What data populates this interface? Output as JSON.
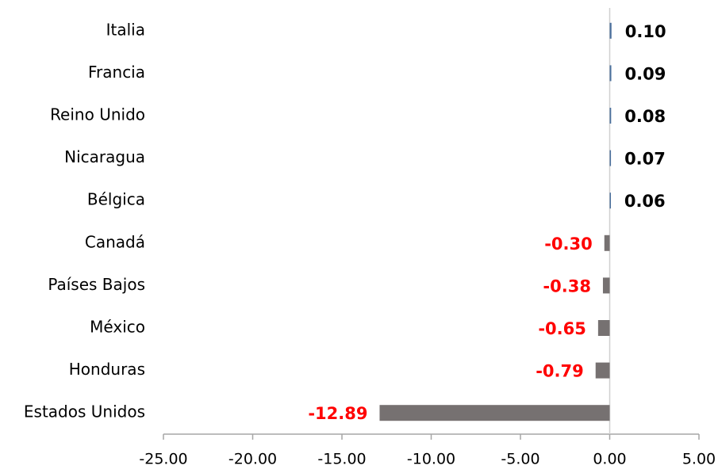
{
  "chart_data": {
    "type": "hbar",
    "categories": [
      "Italia",
      "Francia",
      "Reino Unido",
      "Nicaragua",
      "Bélgica",
      "Canadá",
      "Países Bajos",
      "México",
      "Honduras",
      "Estados Unidos"
    ],
    "values": [
      0.1,
      0.09,
      0.08,
      0.07,
      0.06,
      -0.3,
      -0.38,
      -0.65,
      -0.79,
      -12.89
    ],
    "value_labels": [
      "0.10",
      "0.09",
      "0.08",
      "0.07",
      "0.06",
      "-0.30",
      "-0.38",
      "-0.65",
      "-0.79",
      "-12.89"
    ],
    "bar_colors": {
      "positive": "#4a6f9c",
      "negative": "#767171"
    },
    "label_colors": {
      "positive": "#000000",
      "negative": "#ff0000"
    },
    "xlim": [
      -25,
      5
    ],
    "xticks": [
      {
        "value": -25,
        "label": "-25.00"
      },
      {
        "value": -20,
        "label": "-20.00"
      },
      {
        "value": -15,
        "label": "-15.00"
      },
      {
        "value": -10,
        "label": "-10.00"
      },
      {
        "value": -5,
        "label": "-5.00"
      },
      {
        "value": 0,
        "label": "0.00"
      },
      {
        "value": 5,
        "label": "5.00"
      }
    ],
    "grid": false
  }
}
